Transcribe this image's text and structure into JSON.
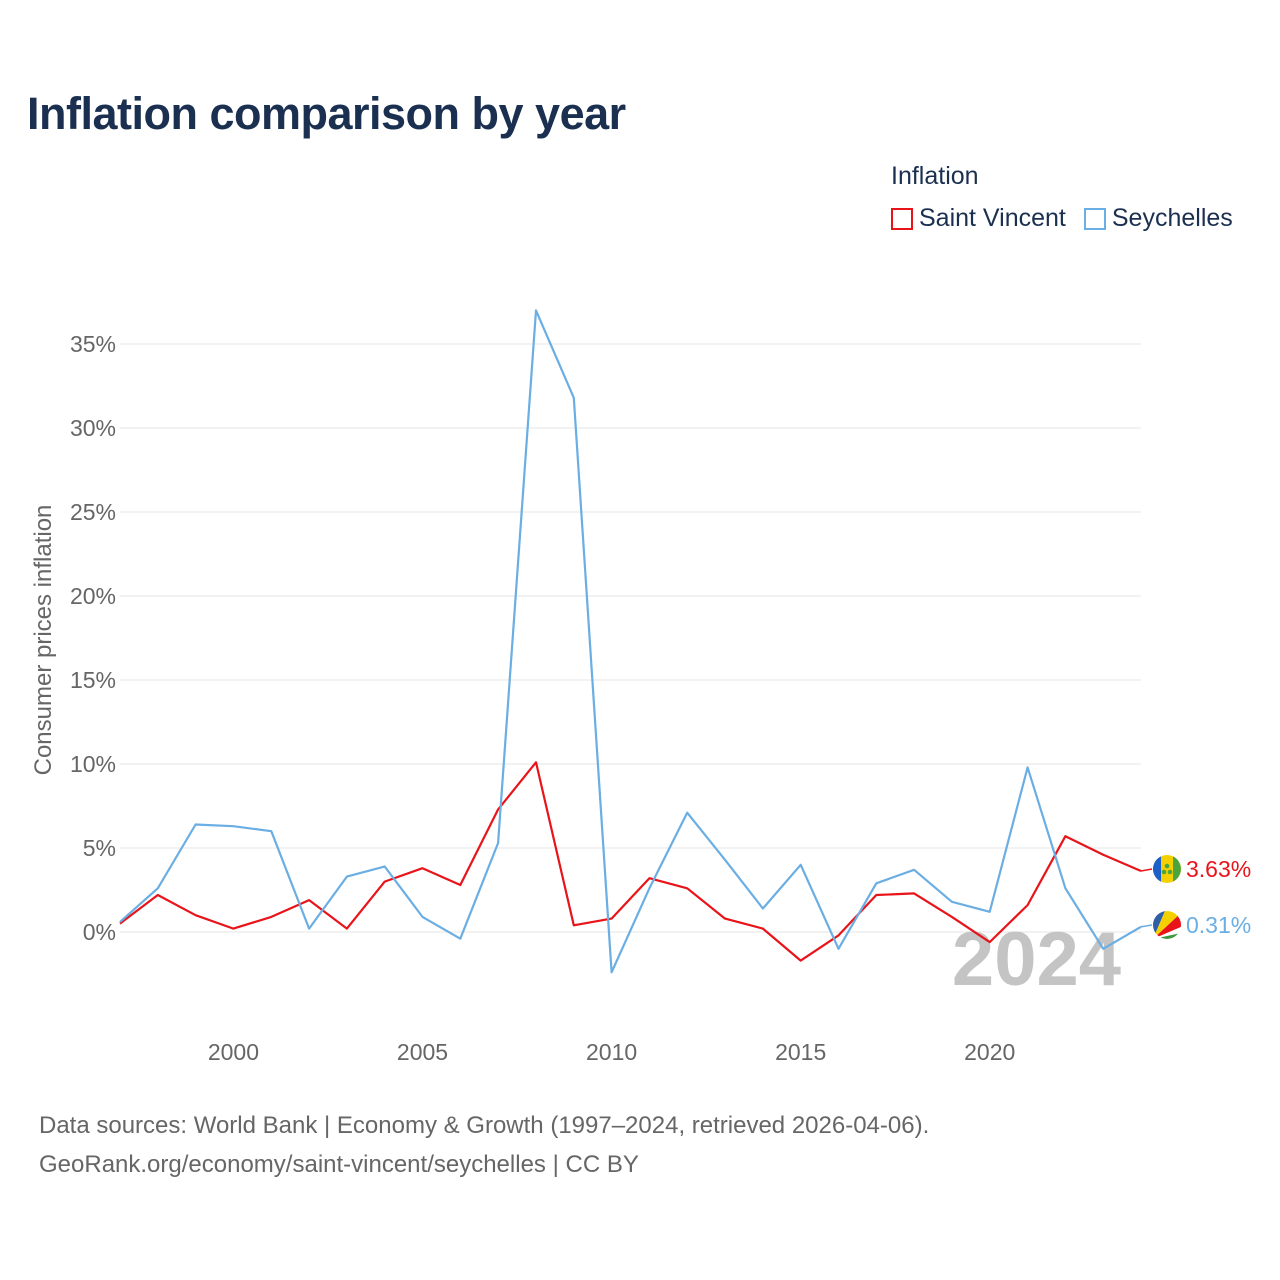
{
  "title": "Inflation comparison by year",
  "legend": {
    "title": "Inflation",
    "items": [
      {
        "name": "Saint Vincent",
        "color": "#e8141a"
      },
      {
        "name": "Seychelles",
        "color": "#6aaee3"
      }
    ]
  },
  "chart_data": {
    "type": "line",
    "title": "Inflation comparison by year",
    "xlabel": "",
    "ylabel": "Consumer prices inflation",
    "xlim": [
      1997,
      2024
    ],
    "ylim": [
      -5,
      37
    ],
    "x_ticks": [
      2000,
      2005,
      2010,
      2015,
      2020
    ],
    "y_ticks": [
      0,
      5,
      10,
      15,
      20,
      25,
      30,
      35
    ],
    "y_tick_labels": [
      "0%",
      "5%",
      "10%",
      "15%",
      "20%",
      "25%",
      "30%",
      "35%"
    ],
    "grid": true,
    "year_watermark": "2024",
    "x": [
      1997,
      1998,
      1999,
      2000,
      2001,
      2002,
      2003,
      2004,
      2005,
      2006,
      2007,
      2008,
      2009,
      2010,
      2011,
      2012,
      2013,
      2014,
      2015,
      2016,
      2017,
      2018,
      2019,
      2020,
      2021,
      2022,
      2023,
      2024
    ],
    "series": [
      {
        "name": "Saint Vincent",
        "color": "#e8141a",
        "end_label": "3.63%",
        "values": [
          0.5,
          2.2,
          1.0,
          0.2,
          0.9,
          1.9,
          0.2,
          3.0,
          3.8,
          2.8,
          7.3,
          10.1,
          0.4,
          0.8,
          3.2,
          2.6,
          0.8,
          0.2,
          -1.7,
          -0.2,
          2.2,
          2.3,
          0.9,
          -0.6,
          1.6,
          5.7,
          4.6,
          3.63
        ]
      },
      {
        "name": "Seychelles",
        "color": "#6aaee3",
        "end_label": "0.31%",
        "values": [
          0.6,
          2.6,
          6.4,
          6.3,
          6.0,
          0.2,
          3.3,
          3.9,
          0.9,
          -0.4,
          5.3,
          37.0,
          31.8,
          -2.4,
          2.6,
          7.1,
          4.3,
          1.4,
          4.0,
          -1.0,
          2.9,
          3.7,
          1.8,
          1.2,
          9.8,
          2.6,
          -1.0,
          0.31
        ]
      }
    ]
  },
  "source": {
    "line1": "Data sources: World Bank | Economy & Growth (1997–2024, retrieved 2026-04-06).",
    "line2": "GeoRank.org/economy/saint-vincent/seychelles | CC BY"
  }
}
